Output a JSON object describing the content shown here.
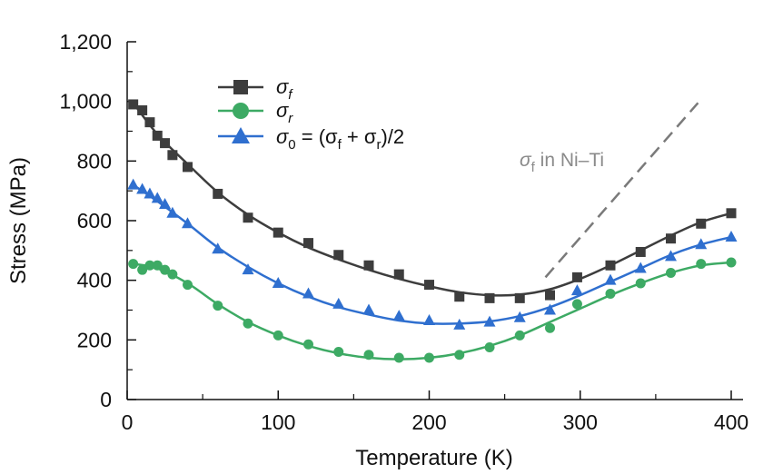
{
  "chart_data": {
    "type": "scatter",
    "title": "",
    "xlabel": "Temperature (K)",
    "ylabel": "Stress (MPa)",
    "xlim": [
      0,
      410
    ],
    "ylim": [
      0,
      1200
    ],
    "xticks": [
      0,
      100,
      200,
      300,
      400
    ],
    "xtick_labels": [
      "0",
      "100",
      "200",
      "300",
      "400"
    ],
    "yticks": [
      0,
      200,
      400,
      600,
      800,
      1000,
      1200
    ],
    "ytick_labels": [
      "0",
      "200",
      "400",
      "600",
      "800",
      "1,000",
      "1,200"
    ],
    "grid": false,
    "legend": {
      "placement": "top-center",
      "entries": [
        {
          "symbol": "σ",
          "sub": "f",
          "suffix": ""
        },
        {
          "symbol": "σ",
          "sub": "r",
          "suffix": ""
        },
        {
          "symbol": "σ",
          "sub": "0",
          "suffix": " = (σ",
          "sub2": "f",
          "mid": " + σ",
          "sub3": "r",
          "tail": ")/2"
        }
      ]
    },
    "series": [
      {
        "marker": "square",
        "color": "#3d3d3d",
        "points": [
          [
            4,
            990
          ],
          [
            10,
            970
          ],
          [
            15,
            930
          ],
          [
            20,
            885
          ],
          [
            25,
            860
          ],
          [
            30,
            820
          ],
          [
            40,
            780
          ],
          [
            60,
            690
          ],
          [
            80,
            610
          ],
          [
            100,
            560
          ],
          [
            120,
            525
          ],
          [
            140,
            485
          ],
          [
            160,
            450
          ],
          [
            180,
            420
          ],
          [
            200,
            385
          ],
          [
            220,
            345
          ],
          [
            240,
            340
          ],
          [
            260,
            340
          ],
          [
            280,
            350
          ],
          [
            298,
            410
          ],
          [
            320,
            450
          ],
          [
            340,
            495
          ],
          [
            360,
            540
          ],
          [
            380,
            590
          ],
          [
            400,
            625
          ]
        ],
        "fit": [
          [
            4,
            995
          ],
          [
            20,
            890
          ],
          [
            40,
            790
          ],
          [
            60,
            695
          ],
          [
            80,
            620
          ],
          [
            100,
            560
          ],
          [
            120,
            510
          ],
          [
            140,
            470
          ],
          [
            160,
            435
          ],
          [
            180,
            405
          ],
          [
            200,
            380
          ],
          [
            220,
            360
          ],
          [
            240,
            350
          ],
          [
            260,
            352
          ],
          [
            280,
            370
          ],
          [
            300,
            405
          ],
          [
            320,
            450
          ],
          [
            340,
            500
          ],
          [
            360,
            550
          ],
          [
            380,
            595
          ],
          [
            400,
            625
          ]
        ]
      },
      {
        "marker": "circle",
        "color": "#3daa64",
        "points": [
          [
            4,
            455
          ],
          [
            10,
            435
          ],
          [
            15,
            450
          ],
          [
            20,
            450
          ],
          [
            25,
            435
          ],
          [
            30,
            420
          ],
          [
            40,
            385
          ],
          [
            60,
            315
          ],
          [
            80,
            255
          ],
          [
            100,
            215
          ],
          [
            120,
            185
          ],
          [
            140,
            160
          ],
          [
            160,
            150
          ],
          [
            180,
            140
          ],
          [
            200,
            140
          ],
          [
            220,
            150
          ],
          [
            240,
            175
          ],
          [
            260,
            215
          ],
          [
            280,
            240
          ],
          [
            298,
            320
          ],
          [
            320,
            355
          ],
          [
            340,
            390
          ],
          [
            360,
            425
          ],
          [
            380,
            455
          ],
          [
            400,
            460
          ]
        ],
        "fit": [
          [
            4,
            455
          ],
          [
            20,
            440
          ],
          [
            40,
            390
          ],
          [
            60,
            320
          ],
          [
            80,
            260
          ],
          [
            100,
            215
          ],
          [
            120,
            180
          ],
          [
            140,
            155
          ],
          [
            160,
            140
          ],
          [
            180,
            135
          ],
          [
            200,
            140
          ],
          [
            220,
            155
          ],
          [
            240,
            180
          ],
          [
            260,
            215
          ],
          [
            280,
            260
          ],
          [
            300,
            305
          ],
          [
            320,
            350
          ],
          [
            340,
            390
          ],
          [
            360,
            425
          ],
          [
            380,
            450
          ],
          [
            400,
            460
          ]
        ]
      },
      {
        "marker": "triangle",
        "color": "#2f6fcf",
        "points": [
          [
            4,
            720
          ],
          [
            10,
            705
          ],
          [
            15,
            690
          ],
          [
            20,
            675
          ],
          [
            25,
            655
          ],
          [
            30,
            625
          ],
          [
            40,
            590
          ],
          [
            60,
            505
          ],
          [
            80,
            435
          ],
          [
            100,
            390
          ],
          [
            120,
            355
          ],
          [
            140,
            320
          ],
          [
            160,
            300
          ],
          [
            180,
            280
          ],
          [
            200,
            265
          ],
          [
            220,
            250
          ],
          [
            240,
            260
          ],
          [
            260,
            275
          ],
          [
            280,
            300
          ],
          [
            298,
            365
          ],
          [
            320,
            400
          ],
          [
            340,
            440
          ],
          [
            360,
            480
          ],
          [
            380,
            520
          ],
          [
            400,
            545
          ]
        ],
        "fit": [
          [
            4,
            720
          ],
          [
            20,
            665
          ],
          [
            40,
            590
          ],
          [
            60,
            510
          ],
          [
            80,
            445
          ],
          [
            100,
            390
          ],
          [
            120,
            345
          ],
          [
            140,
            310
          ],
          [
            160,
            285
          ],
          [
            180,
            265
          ],
          [
            200,
            255
          ],
          [
            220,
            255
          ],
          [
            240,
            262
          ],
          [
            260,
            280
          ],
          [
            280,
            310
          ],
          [
            300,
            350
          ],
          [
            320,
            395
          ],
          [
            340,
            440
          ],
          [
            360,
            485
          ],
          [
            380,
            520
          ],
          [
            400,
            545
          ]
        ]
      }
    ],
    "annotations": [
      {
        "text_symbol": "σ",
        "text_sub": "f",
        "text_tail": " in Ni–Ti",
        "color": "#8a8a8a"
      }
    ],
    "reference_line": {
      "style": "dashed",
      "color": "#7a7a7a",
      "from": [
        277,
        410
      ],
      "to": [
        378,
        995
      ]
    }
  }
}
